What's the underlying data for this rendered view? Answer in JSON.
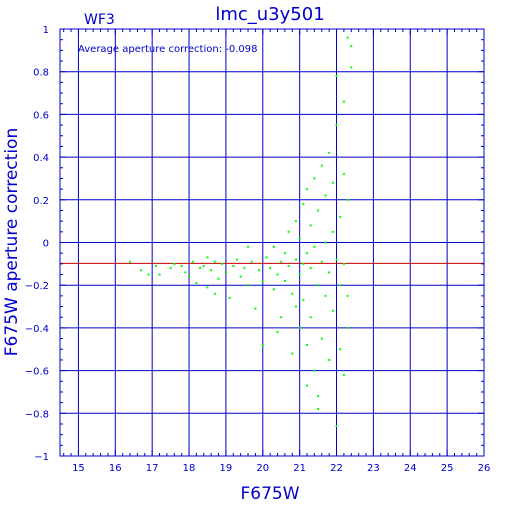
{
  "chart_data": {
    "type": "scatter",
    "title": "lmc_u3y501",
    "subtitle": "WF3",
    "annotation": "Average aperture correction: -0.098",
    "xlabel": "F675W",
    "ylabel": "F675W aperture correction",
    "xlim": [
      14.5,
      26
    ],
    "ylim": [
      -1,
      1
    ],
    "x_ticks": [
      15,
      16,
      17,
      18,
      19,
      20,
      21,
      22,
      23,
      24,
      25,
      26
    ],
    "y_ticks": [
      -1,
      -0.8,
      -0.6,
      -0.4,
      -0.2,
      0,
      0.2,
      0.4,
      0.6,
      0.8,
      1
    ],
    "y_tick_labels": [
      "−1",
      "−0.8",
      "−0.6",
      "−0.4",
      "−0.2",
      "0",
      "0.2",
      "0.4",
      "0.6",
      "0.8",
      "1"
    ],
    "grid": true,
    "reference_line": {
      "y": -0.098
    },
    "colors": {
      "axes": "#0000cc",
      "grid": "#0000cc",
      "points": "#00ff00",
      "reference_line": "#cc0000",
      "text": "#0000cc"
    },
    "series": [
      {
        "values": [
          [
            16.4,
            -0.09
          ],
          [
            16.7,
            -0.13
          ],
          [
            16.9,
            -0.15
          ],
          [
            17.1,
            -0.11
          ],
          [
            17.2,
            -0.15
          ],
          [
            17.5,
            -0.12
          ],
          [
            17.6,
            -0.1
          ],
          [
            17.8,
            -0.11
          ],
          [
            17.9,
            -0.14
          ],
          [
            18.0,
            -0.16
          ],
          [
            18.1,
            -0.09
          ],
          [
            18.2,
            -0.19
          ],
          [
            18.3,
            -0.12
          ],
          [
            18.4,
            -0.11
          ],
          [
            18.5,
            -0.07
          ],
          [
            18.5,
            -0.21
          ],
          [
            18.6,
            -0.13
          ],
          [
            18.7,
            -0.09
          ],
          [
            18.8,
            -0.17
          ],
          [
            18.9,
            -0.1
          ],
          [
            19.0,
            -0.14
          ],
          [
            19.1,
            -0.26
          ],
          [
            19.2,
            -0.11
          ],
          [
            19.3,
            -0.08
          ],
          [
            19.4,
            -0.16
          ],
          [
            19.5,
            -0.12
          ],
          [
            19.6,
            -0.2
          ],
          [
            19.7,
            -0.09
          ],
          [
            19.8,
            -0.31
          ],
          [
            19.9,
            -0.13
          ],
          [
            20.0,
            -0.18
          ],
          [
            20.0,
            -0.48
          ],
          [
            20.1,
            -0.07
          ],
          [
            20.2,
            -0.12
          ],
          [
            20.3,
            -0.22
          ],
          [
            20.3,
            -0.02
          ],
          [
            20.4,
            -0.15
          ],
          [
            20.5,
            -0.09
          ],
          [
            20.5,
            -0.35
          ],
          [
            20.6,
            -0.05
          ],
          [
            20.6,
            -0.18
          ],
          [
            20.7,
            -0.11
          ],
          [
            20.7,
            0.05
          ],
          [
            20.8,
            -0.24
          ],
          [
            20.8,
            -0.52
          ],
          [
            20.9,
            -0.08
          ],
          [
            20.9,
            0.1
          ],
          [
            20.9,
            -0.3
          ],
          [
            21.0,
            -0.15
          ],
          [
            21.0,
            0.02
          ],
          [
            21.0,
            -0.4
          ],
          [
            21.1,
            -0.1
          ],
          [
            21.1,
            0.18
          ],
          [
            21.1,
            -0.27
          ],
          [
            21.2,
            -0.05
          ],
          [
            21.2,
            0.25
          ],
          [
            21.2,
            -0.48
          ],
          [
            21.3,
            -0.12
          ],
          [
            21.3,
            0.08
          ],
          [
            21.3,
            -0.35
          ],
          [
            21.4,
            -0.02
          ],
          [
            21.4,
            0.3
          ],
          [
            21.4,
            -0.6
          ],
          [
            21.5,
            -0.2
          ],
          [
            21.5,
            0.15
          ],
          [
            21.5,
            -0.72
          ],
          [
            21.6,
            -0.09
          ],
          [
            21.6,
            0.36
          ],
          [
            21.6,
            -0.45
          ],
          [
            21.7,
            0.0
          ],
          [
            21.7,
            -0.25
          ],
          [
            21.7,
            0.22
          ],
          [
            21.8,
            -0.14
          ],
          [
            21.8,
            0.42
          ],
          [
            21.8,
            -0.55
          ],
          [
            21.9,
            0.05
          ],
          [
            21.9,
            -0.32
          ],
          [
            21.9,
            0.28
          ],
          [
            22.0,
            -0.08
          ],
          [
            22.0,
            0.55
          ],
          [
            22.0,
            -0.86
          ],
          [
            22.0,
            0.78
          ],
          [
            22.1,
            -0.2
          ],
          [
            22.1,
            0.12
          ],
          [
            22.1,
            -0.5
          ],
          [
            22.2,
            0.32
          ],
          [
            22.2,
            -0.1
          ],
          [
            22.2,
            0.66
          ],
          [
            22.3,
            -0.4
          ],
          [
            22.3,
            0.2
          ],
          [
            22.3,
            0.96
          ],
          [
            22.4,
            0.92
          ],
          [
            22.4,
            0.82
          ],
          [
            22.3,
            -0.25
          ],
          [
            22.2,
            -0.62
          ],
          [
            21.5,
            -0.78
          ],
          [
            21.2,
            -0.67
          ],
          [
            20.4,
            -0.42
          ],
          [
            19.6,
            -0.02
          ],
          [
            18.7,
            -0.24
          ]
        ]
      }
    ]
  }
}
